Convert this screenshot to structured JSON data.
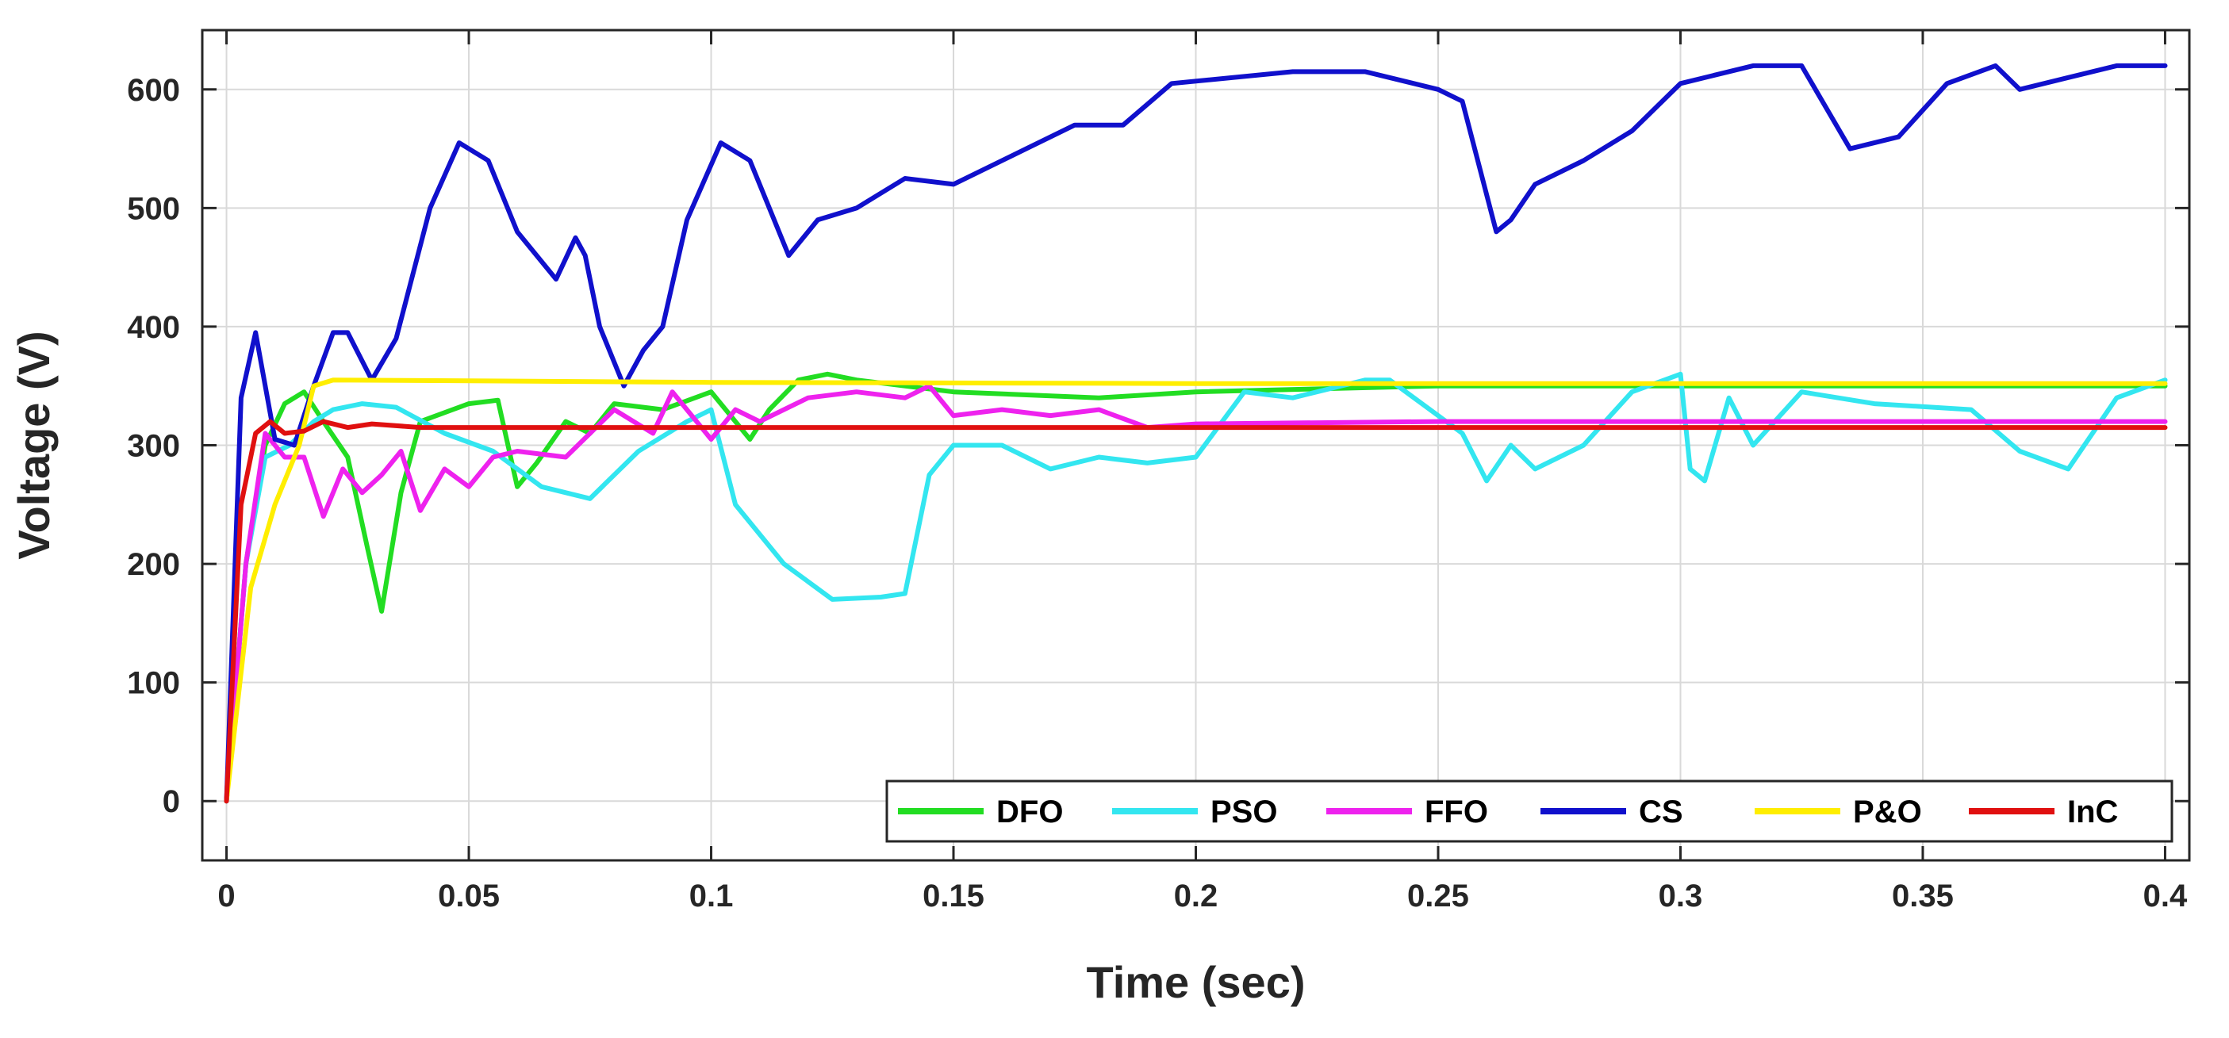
{
  "chart_data": {
    "type": "line",
    "xlabel": "Time (sec)",
    "ylabel": "Voltage (V)",
    "xlim": [
      -0.005,
      0.405
    ],
    "ylim": [
      -50,
      650
    ],
    "xticks": [
      0,
      0.05,
      0.1,
      0.15,
      0.2,
      0.25,
      0.3,
      0.35,
      0.4
    ],
    "xtick_labels": [
      "0",
      "0.05",
      "0.1",
      "0.15",
      "0.2",
      "0.25",
      "0.3",
      "0.35",
      "0.4"
    ],
    "yticks": [
      0,
      100,
      200,
      300,
      400,
      500,
      600
    ],
    "ytick_labels": [
      "0",
      "100",
      "200",
      "300",
      "400",
      "500",
      "600"
    ],
    "grid": true,
    "legend_position": "bottom-right",
    "series": [
      {
        "name": "DFO",
        "color": "#22dd22",
        "x": [
          0,
          0.004,
          0.008,
          0.012,
          0.016,
          0.02,
          0.025,
          0.029,
          0.032,
          0.036,
          0.04,
          0.05,
          0.056,
          0.06,
          0.064,
          0.07,
          0.075,
          0.08,
          0.09,
          0.1,
          0.108,
          0.112,
          0.118,
          0.124,
          0.13,
          0.15,
          0.18,
          0.2,
          0.25,
          0.3,
          0.35,
          0.4
        ],
        "y": [
          0,
          200,
          300,
          335,
          345,
          320,
          290,
          215,
          160,
          260,
          320,
          335,
          338,
          265,
          285,
          320,
          310,
          335,
          330,
          345,
          305,
          330,
          355,
          360,
          355,
          345,
          340,
          345,
          350,
          350,
          350,
          350
        ]
      },
      {
        "name": "PSO",
        "color": "#33e6f0",
        "x": [
          0,
          0.004,
          0.008,
          0.013,
          0.018,
          0.022,
          0.028,
          0.035,
          0.045,
          0.055,
          0.065,
          0.075,
          0.085,
          0.095,
          0.1,
          0.105,
          0.115,
          0.125,
          0.135,
          0.14,
          0.145,
          0.15,
          0.16,
          0.17,
          0.18,
          0.19,
          0.2,
          0.21,
          0.22,
          0.235,
          0.24,
          0.255,
          0.26,
          0.265,
          0.27,
          0.28,
          0.29,
          0.3,
          0.302,
          0.305,
          0.31,
          0.315,
          0.325,
          0.34,
          0.36,
          0.37,
          0.38,
          0.39,
          0.4
        ],
        "y": [
          0,
          200,
          290,
          300,
          320,
          330,
          335,
          332,
          310,
          295,
          265,
          255,
          295,
          320,
          330,
          250,
          200,
          170,
          172,
          175,
          275,
          300,
          300,
          280,
          290,
          285,
          290,
          345,
          340,
          355,
          355,
          310,
          270,
          300,
          280,
          300,
          345,
          360,
          280,
          270,
          340,
          300,
          345,
          335,
          330,
          295,
          280,
          340,
          355
        ]
      },
      {
        "name": "FFO",
        "color": "#ee22ee",
        "x": [
          0,
          0.004,
          0.008,
          0.012,
          0.016,
          0.02,
          0.024,
          0.028,
          0.032,
          0.036,
          0.04,
          0.045,
          0.05,
          0.055,
          0.06,
          0.07,
          0.08,
          0.088,
          0.092,
          0.1,
          0.105,
          0.11,
          0.12,
          0.13,
          0.14,
          0.145,
          0.15,
          0.16,
          0.17,
          0.18,
          0.19,
          0.2,
          0.25,
          0.3,
          0.35,
          0.4
        ],
        "y": [
          0,
          200,
          310,
          290,
          290,
          240,
          280,
          260,
          275,
          295,
          245,
          280,
          265,
          290,
          295,
          290,
          330,
          310,
          345,
          305,
          330,
          320,
          340,
          345,
          340,
          350,
          325,
          330,
          325,
          330,
          315,
          318,
          320,
          320,
          320,
          320
        ]
      },
      {
        "name": "CS",
        "color": "#1010cc",
        "x": [
          0,
          0.003,
          0.006,
          0.01,
          0.014,
          0.018,
          0.022,
          0.025,
          0.03,
          0.035,
          0.042,
          0.048,
          0.054,
          0.06,
          0.068,
          0.072,
          0.074,
          0.077,
          0.082,
          0.086,
          0.09,
          0.095,
          0.102,
          0.108,
          0.116,
          0.122,
          0.13,
          0.14,
          0.15,
          0.165,
          0.175,
          0.185,
          0.195,
          0.22,
          0.235,
          0.25,
          0.255,
          0.262,
          0.265,
          0.27,
          0.28,
          0.29,
          0.3,
          0.315,
          0.325,
          0.335,
          0.345,
          0.355,
          0.365,
          0.37,
          0.38,
          0.39,
          0.4
        ],
        "y": [
          0,
          340,
          395,
          305,
          300,
          350,
          395,
          395,
          355,
          390,
          500,
          555,
          540,
          480,
          440,
          475,
          460,
          400,
          350,
          380,
          400,
          490,
          555,
          540,
          460,
          490,
          500,
          525,
          520,
          550,
          570,
          570,
          605,
          615,
          615,
          600,
          590,
          480,
          490,
          520,
          540,
          565,
          605,
          620,
          620,
          550,
          560,
          605,
          620,
          600,
          610,
          620,
          620
        ]
      },
      {
        "name": "P&O",
        "color": "#ffee00",
        "x": [
          0,
          0.005,
          0.01,
          0.015,
          0.018,
          0.022,
          0.1,
          0.2,
          0.3,
          0.4
        ],
        "y": [
          0,
          180,
          250,
          300,
          350,
          355,
          353,
          352,
          352,
          352
        ]
      },
      {
        "name": "InC",
        "color": "#e01010",
        "x": [
          0,
          0.003,
          0.006,
          0.009,
          0.012,
          0.016,
          0.02,
          0.025,
          0.03,
          0.04,
          0.1,
          0.2,
          0.3,
          0.4
        ],
        "y": [
          0,
          250,
          310,
          320,
          310,
          312,
          320,
          315,
          318,
          315,
          315,
          315,
          315,
          315
        ]
      }
    ]
  }
}
